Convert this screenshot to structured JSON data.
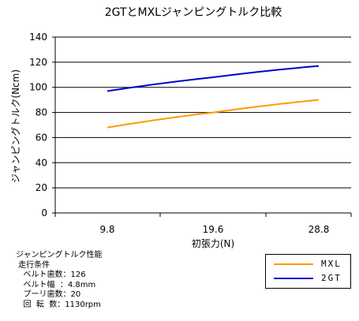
{
  "chart_data": {
    "type": "line",
    "title": "2GTとMXLジャンピングトルク比較",
    "xlabel": "初張力(N)",
    "ylabel": "ジャンピングトルク(Ncm)",
    "x": [
      9.8,
      19.6,
      28.8
    ],
    "x_ticks": [
      "9.8",
      "19.6",
      "28.8"
    ],
    "ylim": [
      0,
      140
    ],
    "y_ticks": [
      "0",
      "20",
      "40",
      "60",
      "80",
      "100",
      "120",
      "140"
    ],
    "grid": true,
    "series": [
      {
        "name": "MXL",
        "color": "#FF9900",
        "values": [
          68,
          80,
          90
        ]
      },
      {
        "name": "2GT",
        "color": "#0000CC",
        "values": [
          97,
          108,
          117
        ]
      }
    ],
    "legend_position": "bottom-right"
  },
  "notes": [
    "ジャンピングトルク性能",
    " 走行条件",
    "   ベルト歯数：126",
    "   ベルト幅  ：4.8mm",
    "   プーリ歯数：20",
    "   回  転  数：1130rpm"
  ]
}
